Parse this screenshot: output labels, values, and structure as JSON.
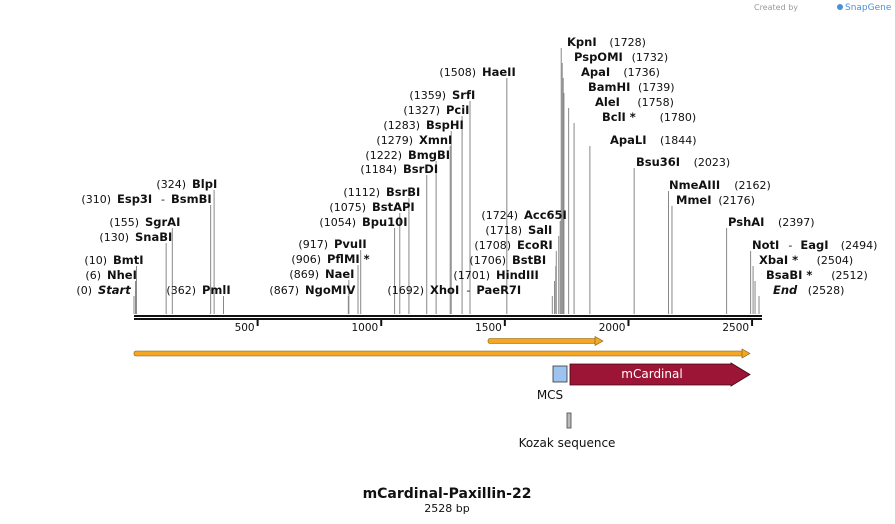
{
  "header": {
    "created_by": "Created by",
    "brand": "SnapGene"
  },
  "plasmid": {
    "name": "mCardinal-Paxillin-22",
    "length_label": "2528 bp",
    "length": 2528
  },
  "axis": {
    "ticks": [
      500,
      1000,
      1500,
      2000,
      2500
    ]
  },
  "left_sites": [
    {
      "pos": "(324)",
      "name": "BlpI",
      "bp": 324,
      "star": false
    },
    {
      "pos": "(310)",
      "name": "Esp3I",
      "name2": "BsmBI",
      "bp": 310,
      "star": false
    },
    {
      "pos": "(155)",
      "name": "SgrAI",
      "bp": 155,
      "star": false
    },
    {
      "pos": "(130)",
      "name": "SnaBI",
      "bp": 130,
      "star": false
    },
    {
      "pos": "(10)",
      "name": "BmtI",
      "bp": 10,
      "star": false
    },
    {
      "pos": "(6)",
      "name": "NheI",
      "bp": 6,
      "star": false
    },
    {
      "pos": "(0)",
      "name": "Start",
      "bp": 0,
      "italic": true
    },
    {
      "pos": "(362)",
      "name": "PmlI",
      "bp": 362,
      "star": false
    },
    {
      "pos": "(917)",
      "name": "PvuII",
      "bp": 917,
      "star": false
    },
    {
      "pos": "(906)",
      "name": "PflMI *",
      "bp": 906,
      "star": true
    },
    {
      "pos": "(869)",
      "name": "NaeI",
      "bp": 869,
      "star": false
    },
    {
      "pos": "(867)",
      "name": "NgoMIV",
      "bp": 867,
      "star": false
    },
    {
      "pos": "(1112)",
      "name": "BsrBI",
      "bp": 1112,
      "star": false
    },
    {
      "pos": "(1075)",
      "name": "BstAPI",
      "bp": 1075,
      "star": false
    },
    {
      "pos": "(1054)",
      "name": "Bpu10I",
      "bp": 1054,
      "star": false
    },
    {
      "pos": "(1692)",
      "name": "XhoI",
      "name2": "PaeR7I",
      "bp": 1692,
      "star": false
    },
    {
      "pos": "(1508)",
      "name": "HaeII",
      "bp": 1508,
      "star": false
    },
    {
      "pos": "(1359)",
      "name": "SrfI",
      "bp": 1359,
      "star": false
    },
    {
      "pos": "(1327)",
      "name": "PciI",
      "bp": 1327,
      "star": false
    },
    {
      "pos": "(1283)",
      "name": "BspHI",
      "bp": 1283,
      "star": false
    },
    {
      "pos": "(1279)",
      "name": "XmnI",
      "bp": 1279,
      "star": false
    },
    {
      "pos": "(1222)",
      "name": "BmgBI",
      "bp": 1222,
      "star": false
    },
    {
      "pos": "(1184)",
      "name": "BsrDI",
      "bp": 1184,
      "star": false
    },
    {
      "pos": "(1724)",
      "name": "Acc65I",
      "bp": 1724,
      "star": false
    },
    {
      "pos": "(1718)",
      "name": "SalI",
      "bp": 1718,
      "star": false
    },
    {
      "pos": "(1708)",
      "name": "EcoRI",
      "bp": 1708,
      "star": false
    },
    {
      "pos": "(1706)",
      "name": "BstBI",
      "bp": 1706,
      "star": false
    },
    {
      "pos": "(1701)",
      "name": "HindIII",
      "bp": 1701,
      "star": false
    }
  ],
  "right_sites": [
    {
      "pos": "(1728)",
      "name": "KpnI",
      "bp": 1728
    },
    {
      "pos": "(1732)",
      "name": "PspOMI",
      "bp": 1732
    },
    {
      "pos": "(1736)",
      "name": "ApaI",
      "bp": 1736
    },
    {
      "pos": "(1739)",
      "name": "BamHI",
      "bp": 1739
    },
    {
      "pos": "(1758)",
      "name": "AleI",
      "bp": 1758
    },
    {
      "pos": "(1780)",
      "name": "BclI *",
      "bp": 1780
    },
    {
      "pos": "(1844)",
      "name": "ApaLI",
      "bp": 1844
    },
    {
      "pos": "(2023)",
      "name": "Bsu36I",
      "bp": 2023
    },
    {
      "pos": "(2162)",
      "name": "NmeAIII",
      "bp": 2162
    },
    {
      "pos": "(2176)",
      "name": "MmeI",
      "bp": 2176
    },
    {
      "pos": "(2397)",
      "name": "PshAI",
      "bp": 2397
    },
    {
      "pos": "(2494)",
      "name": "NotI",
      "name2": "EagI",
      "bp": 2494
    },
    {
      "pos": "(2504)",
      "name": "XbaI *",
      "bp": 2504
    },
    {
      "pos": "(2512)",
      "name": "BsaBI *",
      "bp": 2512
    },
    {
      "pos": "(2528)",
      "name": "End",
      "bp": 2528,
      "italic": true
    }
  ],
  "features": {
    "mcs_label": "MCS",
    "mcardinal_label": "mCardinal",
    "kozak_label": "Kozak sequence"
  },
  "colors": {
    "mcardinal": "#9c1536",
    "mcs": "#9cc4ee",
    "orf": "#f5a623"
  }
}
